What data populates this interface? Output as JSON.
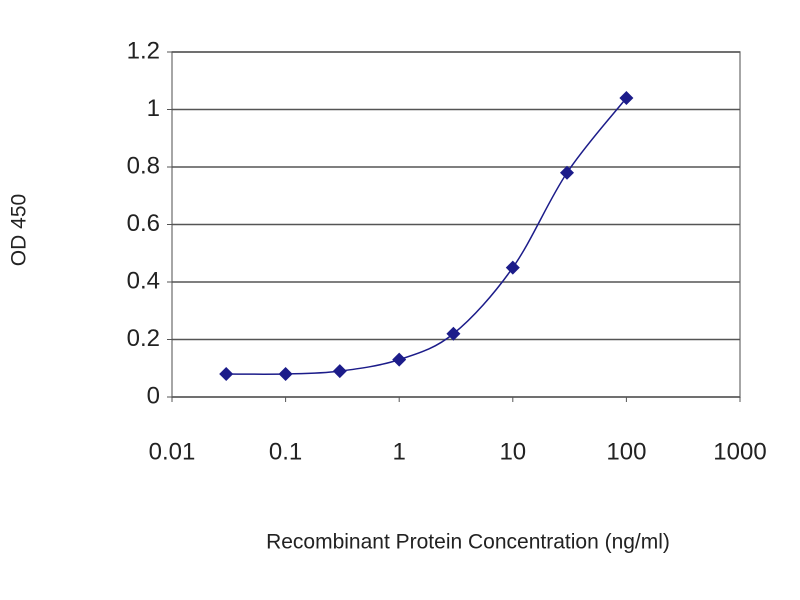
{
  "chart_data": {
    "type": "line",
    "x_label": "Recombinant Protein Concentration (ng/ml)",
    "y_label": "OD 450",
    "x": [
      0.03,
      0.1,
      0.3,
      1,
      3,
      10,
      30,
      100
    ],
    "series": [
      {
        "color": "#1c1c8a",
        "values": [
          0.08,
          0.08,
          0.09,
          0.13,
          0.22,
          0.45,
          0.78,
          1.04
        ]
      }
    ],
    "xscale": "log",
    "xlim": [
      0.01,
      1000
    ],
    "xticks": [
      0.01,
      0.1,
      1,
      10,
      100,
      1000
    ],
    "ylim": [
      0,
      1.2
    ],
    "yticks": [
      0,
      0.2,
      0.4,
      0.6,
      0.8,
      1,
      1.2
    ],
    "grid": true
  }
}
